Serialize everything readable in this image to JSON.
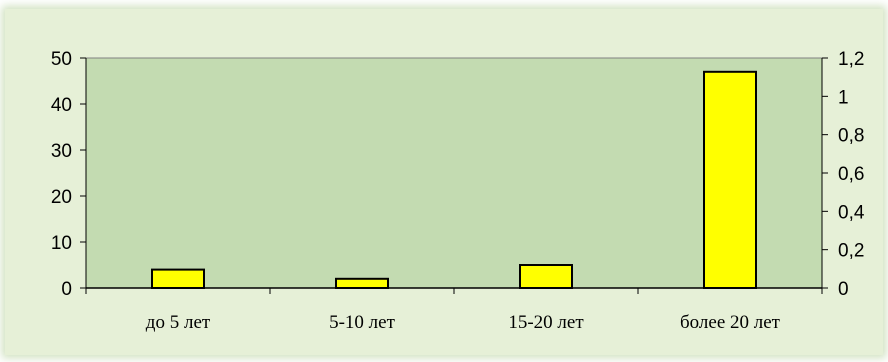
{
  "chart_data": {
    "type": "bar",
    "categories": [
      "до 5 лет",
      "5-10 лет",
      "15-20 лет",
      "более 20 лет"
    ],
    "values": [
      4,
      2,
      5,
      47
    ],
    "ylim": [
      0,
      50
    ],
    "y_ticks": [
      0,
      10,
      20,
      30,
      40,
      50
    ],
    "y2lim": [
      0,
      1.2
    ],
    "y2_ticks": [
      "0",
      "0,2",
      "0,4",
      "0,6",
      "0,8",
      "1",
      "1,2"
    ],
    "title": "",
    "xlabel": "",
    "ylabel": "",
    "grid": false,
    "legend": "none",
    "colors": {
      "background": "#e6f0d7",
      "plot_area": "#c3dbb1",
      "bar_fill": "#ffff00",
      "bar_stroke": "#000000"
    }
  }
}
